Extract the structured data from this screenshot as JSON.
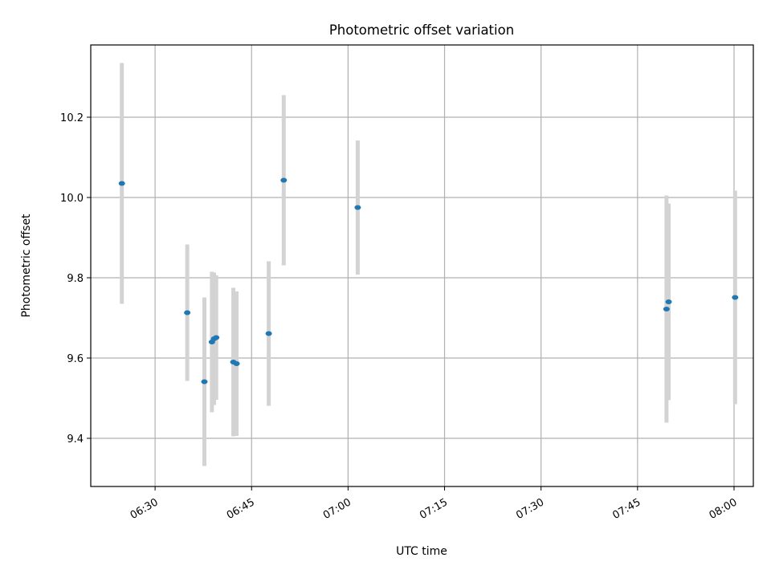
{
  "chart_data": {
    "type": "scatter",
    "title": "Photometric offset variation",
    "xlabel": "UTC time",
    "ylabel": "Photometric offset",
    "xlim": [
      "06:20",
      "08:03"
    ],
    "ylim": [
      9.28,
      10.38
    ],
    "x_ticks": [
      "06:30",
      "06:45",
      "07:00",
      "07:15",
      "07:30",
      "07:45",
      "08:00"
    ],
    "y_ticks": [
      9.4,
      9.6,
      9.8,
      10.0,
      10.2
    ],
    "y_tick_labels": [
      "9.4",
      "9.6",
      "9.8",
      "10.0",
      "10.2"
    ],
    "grid": true,
    "colors": {
      "point": "#1f77b4",
      "errorbar": "#d3d3d3"
    },
    "points": [
      {
        "x": "06:24:50",
        "y": 10.035,
        "err": 0.3
      },
      {
        "x": "06:35:00",
        "y": 9.713,
        "err": 0.17
      },
      {
        "x": "06:37:40",
        "y": 9.541,
        "err": 0.21
      },
      {
        "x": "06:38:50",
        "y": 9.64,
        "err": 0.175
      },
      {
        "x": "06:39:10",
        "y": 9.648,
        "err": 0.165
      },
      {
        "x": "06:39:30",
        "y": 9.651,
        "err": 0.155
      },
      {
        "x": "06:42:10",
        "y": 9.59,
        "err": 0.185
      },
      {
        "x": "06:42:40",
        "y": 9.586,
        "err": 0.18
      },
      {
        "x": "06:47:40",
        "y": 9.661,
        "err": 0.18
      },
      {
        "x": "06:50:00",
        "y": 10.043,
        "err": 0.212
      },
      {
        "x": "07:01:30",
        "y": 9.975,
        "err": 0.167
      },
      {
        "x": "07:49:30",
        "y": 9.722,
        "err": 0.283
      },
      {
        "x": "07:49:50",
        "y": 9.74,
        "err": 0.245
      },
      {
        "x": "08:00:10",
        "y": 9.751,
        "err": 0.266
      }
    ]
  }
}
